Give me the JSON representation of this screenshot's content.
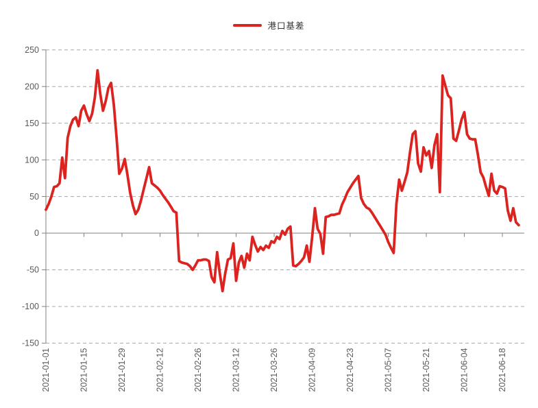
{
  "legend": {
    "label": "港口基差"
  },
  "colors": {
    "series_red": "#db2420",
    "axis_gray": "#808080",
    "grid_gray": "#a8a8a8",
    "tick_label_gray": "#595959"
  },
  "chart_data": {
    "type": "line",
    "title": "",
    "xlabel": "",
    "ylabel": "",
    "legend_position": "top-center",
    "grid": "horizontal dashed, solid line at zero",
    "ylim": [
      -150,
      250
    ],
    "y_ticks": [
      250,
      200,
      150,
      100,
      50,
      0,
      -50,
      -100,
      -150
    ],
    "x_tick_labels": [
      "2021-01-01",
      "2021-01-15",
      "2021-01-29",
      "2021-02-12",
      "2021-02-26",
      "2021-03-12",
      "2021-03-26",
      "2021-04-09",
      "2021-04-23",
      "2021-05-07",
      "2021-05-21",
      "2021-06-04",
      "2021-06-18"
    ],
    "x_tick_interval_days": 14,
    "series": [
      {
        "name": "港口基差",
        "color": "#db2420",
        "start_date": "2021-01-01",
        "step_days": 1,
        "values": [
          32,
          40,
          50,
          63,
          64,
          68,
          103,
          75,
          130,
          146,
          155,
          158,
          146,
          167,
          174,
          162,
          153,
          163,
          185,
          222,
          190,
          167,
          180,
          198,
          205,
          175,
          130,
          81,
          88,
          101,
          80,
          55,
          38,
          26,
          32,
          45,
          60,
          75,
          90,
          68,
          65,
          62,
          58,
          52,
          47,
          42,
          36,
          30,
          28,
          -38,
          -40,
          -41,
          -42,
          -45,
          -50,
          -44,
          -37,
          -37,
          -36,
          -36,
          -38,
          -60,
          -67,
          -26,
          -55,
          -79,
          -55,
          -36,
          -34,
          -14,
          -65,
          -40,
          -31,
          -47,
          -28,
          -37,
          -5,
          -16,
          -25,
          -19,
          -23,
          -17,
          -20,
          -11,
          -13,
          -5,
          -8,
          3,
          -2,
          6,
          9,
          -44,
          -45,
          -42,
          -38,
          -33,
          -17,
          -39,
          -5,
          34,
          6,
          -1,
          -28,
          22,
          23,
          25,
          25,
          26,
          27,
          39,
          47,
          56,
          62,
          68,
          73,
          78,
          48,
          40,
          35,
          33,
          28,
          22,
          16,
          10,
          4,
          -2,
          -12,
          -20,
          -27,
          40,
          73,
          58,
          70,
          83,
          110,
          135,
          139,
          95,
          84,
          117,
          106,
          112,
          89,
          120,
          135,
          56,
          215,
          201,
          188,
          184,
          129,
          126,
          140,
          155,
          165,
          135,
          129,
          128,
          128,
          107,
          83,
          76,
          63,
          51,
          81,
          58,
          54,
          64,
          63,
          61,
          31,
          17,
          34,
          15,
          11
        ]
      }
    ]
  }
}
